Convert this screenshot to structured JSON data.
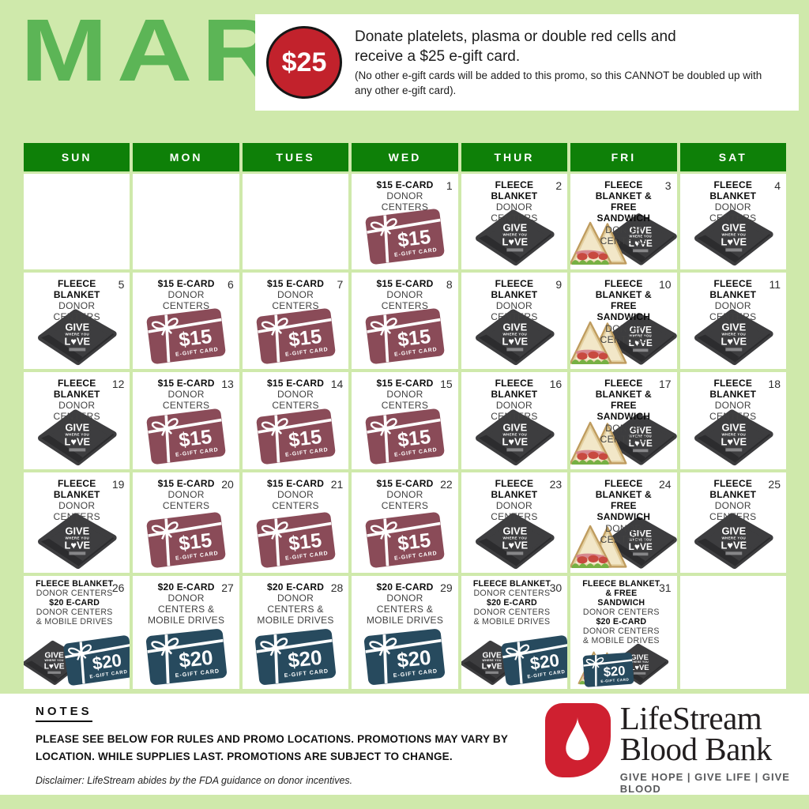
{
  "colors": {
    "page_bg": "#cfe9ab",
    "header_green": "#0e8008",
    "month_green": "#5cb556",
    "badge_red": "#c2222c",
    "card15_color": "#8a4b58",
    "card20_color": "#274a5e",
    "blanket_color": "#3d3d3f",
    "logo_red": "#cf2030"
  },
  "masthead": {
    "month": "MAR",
    "badge_text": "$25",
    "promo_main": "Donate platelets, plasma or double red cells and receive a $25 e-gift card.",
    "promo_fine": "(No other e-gift cards will be added to this promo, so this CANNOT be doubled up with any other e-gift card)."
  },
  "calendar": {
    "weekdays": [
      "SUN",
      "MON",
      "TUES",
      "WED",
      "THUR",
      "FRI",
      "SAT"
    ],
    "leading_blanks": 3,
    "trailing_blanks": 1,
    "artwork": {
      "card15": {
        "amount": "$15",
        "label": "E-GIFT CARD"
      },
      "card20": {
        "amount": "$20",
        "label": "E-GIFT CARD"
      },
      "blanket": {
        "line1": "GIVE",
        "line2": "WHERE YOU",
        "line3": "L♥VE"
      }
    },
    "days": [
      {
        "num": 1,
        "title": "$15 E-CARD",
        "subtitle": "DONOR CENTERS",
        "art": [
          "card15"
        ]
      },
      {
        "num": 2,
        "title": "FLEECE BLANKET",
        "subtitle": "DONOR CENTERS",
        "art": [
          "blanket"
        ]
      },
      {
        "num": 3,
        "title": "FLEECE BLANKET & FREE SANDWICH",
        "subtitle": "DONOR CENTERS",
        "art": [
          "sandwich",
          "blanket"
        ]
      },
      {
        "num": 4,
        "title": "FLEECE BLANKET",
        "subtitle": "DONOR CENTERS",
        "art": [
          "blanket"
        ]
      },
      {
        "num": 5,
        "title": "FLEECE BLANKET",
        "subtitle": "DONOR CENTERS",
        "art": [
          "blanket"
        ]
      },
      {
        "num": 6,
        "title": "$15 E-CARD",
        "subtitle": "DONOR CENTERS",
        "art": [
          "card15"
        ]
      },
      {
        "num": 7,
        "title": "$15 E-CARD",
        "subtitle": "DONOR CENTERS",
        "art": [
          "card15"
        ]
      },
      {
        "num": 8,
        "title": "$15 E-CARD",
        "subtitle": "DONOR CENTERS",
        "art": [
          "card15"
        ]
      },
      {
        "num": 9,
        "title": "FLEECE BLANKET",
        "subtitle": "DONOR CENTERS",
        "art": [
          "blanket"
        ]
      },
      {
        "num": 10,
        "title": "FLEECE BLANKET & FREE SANDWICH",
        "subtitle": "DONOR CENTERS",
        "art": [
          "sandwich",
          "blanket"
        ]
      },
      {
        "num": 11,
        "title": "FLEECE BLANKET",
        "subtitle": "DONOR CENTERS",
        "art": [
          "blanket"
        ]
      },
      {
        "num": 12,
        "title": "FLEECE BLANKET",
        "subtitle": "DONOR CENTERS",
        "art": [
          "blanket"
        ]
      },
      {
        "num": 13,
        "title": "$15 E-CARD",
        "subtitle": "DONOR CENTERS",
        "art": [
          "card15"
        ]
      },
      {
        "num": 14,
        "title": "$15 E-CARD",
        "subtitle": "DONOR CENTERS",
        "art": [
          "card15"
        ]
      },
      {
        "num": 15,
        "title": "$15 E-CARD",
        "subtitle": "DONOR CENTERS",
        "art": [
          "card15"
        ]
      },
      {
        "num": 16,
        "title": "FLEECE BLANKET",
        "subtitle": "DONOR CENTERS",
        "art": [
          "blanket"
        ]
      },
      {
        "num": 17,
        "title": "FLEECE BLANKET & FREE SANDWICH",
        "subtitle": "DONOR CENTERS",
        "art": [
          "sandwich",
          "blanket"
        ]
      },
      {
        "num": 18,
        "title": "FLEECE BLANKET",
        "subtitle": "DONOR CENTERS",
        "art": [
          "blanket"
        ]
      },
      {
        "num": 19,
        "title": "FLEECE BLANKET",
        "subtitle": "DONOR CENTERS",
        "art": [
          "blanket"
        ]
      },
      {
        "num": 20,
        "title": "$15 E-CARD",
        "subtitle": "DONOR CENTERS",
        "art": [
          "card15"
        ]
      },
      {
        "num": 21,
        "title": "$15 E-CARD",
        "subtitle": "DONOR CENTERS",
        "art": [
          "card15"
        ]
      },
      {
        "num": 22,
        "title": "$15 E-CARD",
        "subtitle": "DONOR CENTERS",
        "art": [
          "card15"
        ]
      },
      {
        "num": 23,
        "title": "FLEECE BLANKET",
        "subtitle": "DONOR CENTERS",
        "art": [
          "blanket"
        ]
      },
      {
        "num": 24,
        "title": "FLEECE BLANKET & FREE SANDWICH",
        "subtitle": "DONOR CENTERS",
        "art": [
          "sandwich",
          "blanket"
        ]
      },
      {
        "num": 25,
        "title": "FLEECE BLANKET",
        "subtitle": "DONOR CENTERS",
        "art": [
          "blanket"
        ]
      },
      {
        "num": 26,
        "title": "FLEECE BLANKET",
        "subtitle": "DONOR CENTERS",
        "title2": "$20 E-CARD",
        "subtitle2": "DONOR CENTERS & MOBILE DRIVES",
        "compact": true,
        "art": [
          "blanket",
          "card20"
        ]
      },
      {
        "num": 27,
        "title": "$20 E-CARD",
        "subtitle": "DONOR CENTERS & MOBILE DRIVES",
        "art": [
          "card20"
        ]
      },
      {
        "num": 28,
        "title": "$20 E-CARD",
        "subtitle": "DONOR CENTERS & MOBILE DRIVES",
        "art": [
          "card20"
        ]
      },
      {
        "num": 29,
        "title": "$20 E-CARD",
        "subtitle": "DONOR CENTERS & MOBILE DRIVES",
        "art": [
          "card20"
        ]
      },
      {
        "num": 30,
        "title": "FLEECE BLANKET",
        "subtitle": "DONOR CENTERS",
        "title2": "$20 E-CARD",
        "subtitle2": "DONOR CENTERS & MOBILE DRIVES",
        "compact": true,
        "art": [
          "blanket",
          "card20"
        ]
      },
      {
        "num": 31,
        "title": "FLEECE BLANKET & FREE SANDWICH",
        "subtitle": "DONOR CENTERS",
        "title2": "$20 E-CARD",
        "subtitle2": "DONOR CENTERS & MOBILE DRIVES",
        "compact": true,
        "art": [
          "sandwich",
          "blanket",
          "card20"
        ]
      }
    ]
  },
  "footer": {
    "notes_title": "NOTES",
    "notes_body": "PLEASE SEE BELOW FOR RULES AND PROMO LOCATIONS. PROMOTIONS MAY VARY BY LOCATION. WHILE SUPPLIES LAST. PROMOTIONS ARE SUBJECT TO CHANGE.",
    "disclaimer": "Disclaimer: LifeStream abides by the FDA guidance on donor incentives.",
    "logo_line1": "LifeStream",
    "logo_line2": "Blood Bank",
    "tagline": "GIVE HOPE | GIVE LIFE | GIVE BLOOD"
  }
}
